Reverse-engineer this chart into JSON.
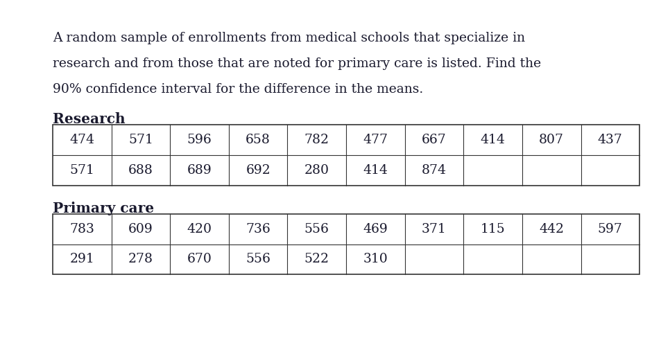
{
  "paragraph": "A random sample of enrollments from medical schools that specialize in research and from those that are noted for primary care is listed. Find the 90% confidence interval for the difference in the means.",
  "research_label": "Research",
  "primary_label": "Primary care",
  "research_row1": [
    "474",
    "571",
    "596",
    "658",
    "782",
    "477",
    "667",
    "414",
    "807",
    "437"
  ],
  "research_row2": [
    "571",
    "688",
    "689",
    "692",
    "280",
    "414",
    "874",
    "",
    "",
    ""
  ],
  "primary_row1": [
    "783",
    "609",
    "420",
    "736",
    "556",
    "469",
    "371",
    "115",
    "442",
    "597"
  ],
  "primary_row2": [
    "291",
    "278",
    "670",
    "556",
    "522",
    "310",
    "",
    "",
    "",
    ""
  ],
  "bg_color": "#ffffff",
  "text_color": "#1a1a2e",
  "table_border_color": "#333333",
  "font_size_paragraph": 13.5,
  "font_size_label": 14.5,
  "font_size_table": 13.5,
  "num_cols": 10
}
